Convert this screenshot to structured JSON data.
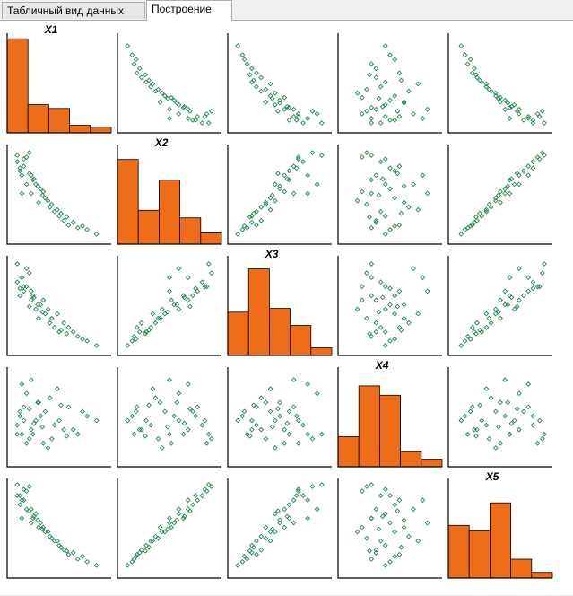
{
  "tabs": [
    {
      "label": "Табличный вид данных",
      "active": false
    },
    {
      "label": "Построение",
      "active": true
    }
  ],
  "colors": {
    "histogram_fill": "#ed6d18",
    "point_stroke": "#1f8a4c",
    "axis": "#000000"
  },
  "chart_data": {
    "type": "scatter-matrix",
    "variables": [
      "X1",
      "X2",
      "X3",
      "X4",
      "X5"
    ],
    "histograms": [
      [
        5,
        1.5,
        1.3,
        0.4,
        0.3
      ],
      [
        4.5,
        1.8,
        3.4,
        1.4,
        0.6
      ],
      [
        2.3,
        4.6,
        2.5,
        1.6,
        0.4
      ],
      [
        1.6,
        4.3,
        3.8,
        0.8,
        0.4
      ],
      [
        2.8,
        2.5,
        4.0,
        1.0,
        0.3
      ]
    ],
    "observations": [
      [
        0.1,
        0.5,
        0.8,
        0.3,
        0.6
      ],
      [
        0.08,
        0.75,
        0.6,
        0.55,
        0.75
      ],
      [
        0.15,
        0.9,
        0.7,
        0.2,
        0.9
      ],
      [
        0.05,
        0.85,
        0.75,
        0.4,
        0.85
      ],
      [
        0.2,
        0.7,
        0.55,
        0.35,
        0.7
      ],
      [
        0.12,
        0.8,
        0.65,
        0.6,
        0.8
      ],
      [
        0.18,
        0.95,
        0.85,
        0.25,
        0.95
      ],
      [
        0.25,
        0.6,
        0.45,
        0.45,
        0.65
      ],
      [
        0.3,
        0.55,
        0.5,
        0.5,
        0.55
      ],
      [
        0.22,
        0.65,
        0.6,
        0.3,
        0.6
      ],
      [
        0.28,
        0.4,
        0.35,
        0.65,
        0.5
      ],
      [
        0.35,
        0.45,
        0.4,
        0.55,
        0.45
      ],
      [
        0.4,
        0.35,
        0.3,
        0.7,
        0.4
      ],
      [
        0.45,
        0.3,
        0.25,
        0.4,
        0.35
      ],
      [
        0.5,
        0.25,
        0.2,
        0.45,
        0.3
      ],
      [
        0.55,
        0.2,
        0.3,
        0.35,
        0.25
      ],
      [
        0.6,
        0.15,
        0.25,
        0.6,
        0.2
      ],
      [
        0.7,
        0.12,
        0.15,
        0.3,
        0.15
      ],
      [
        0.8,
        0.1,
        0.1,
        0.5,
        0.12
      ],
      [
        0.9,
        0.05,
        0.05,
        0.45,
        0.08
      ],
      [
        0.15,
        0.6,
        0.9,
        0.75,
        0.7
      ],
      [
        0.1,
        0.7,
        0.8,
        0.85,
        0.8
      ],
      [
        0.2,
        0.5,
        0.65,
        0.9,
        0.55
      ],
      [
        0.33,
        0.52,
        0.55,
        0.2,
        0.5
      ],
      [
        0.38,
        0.42,
        0.45,
        0.15,
        0.45
      ],
      [
        0.27,
        0.58,
        0.5,
        0.65,
        0.58
      ],
      [
        0.42,
        0.38,
        0.35,
        0.25,
        0.38
      ],
      [
        0.48,
        0.32,
        0.4,
        0.8,
        0.35
      ],
      [
        0.65,
        0.18,
        0.2,
        0.35,
        0.22
      ],
      [
        0.75,
        0.14,
        0.12,
        0.55,
        0.18
      ],
      [
        0.12,
        0.88,
        0.7,
        0.45,
        0.92
      ],
      [
        0.08,
        0.78,
        0.68,
        0.5,
        0.85
      ],
      [
        0.23,
        0.66,
        0.58,
        0.42,
        0.62
      ],
      [
        0.32,
        0.48,
        0.42,
        0.38,
        0.48
      ],
      [
        0.05,
        0.92,
        0.95,
        0.3,
        0.97
      ],
      [
        0.52,
        0.28,
        0.22,
        0.62,
        0.28
      ],
      [
        0.58,
        0.24,
        0.18,
        0.28,
        0.24
      ],
      [
        0.18,
        0.72,
        0.48,
        0.58,
        0.68
      ]
    ]
  }
}
